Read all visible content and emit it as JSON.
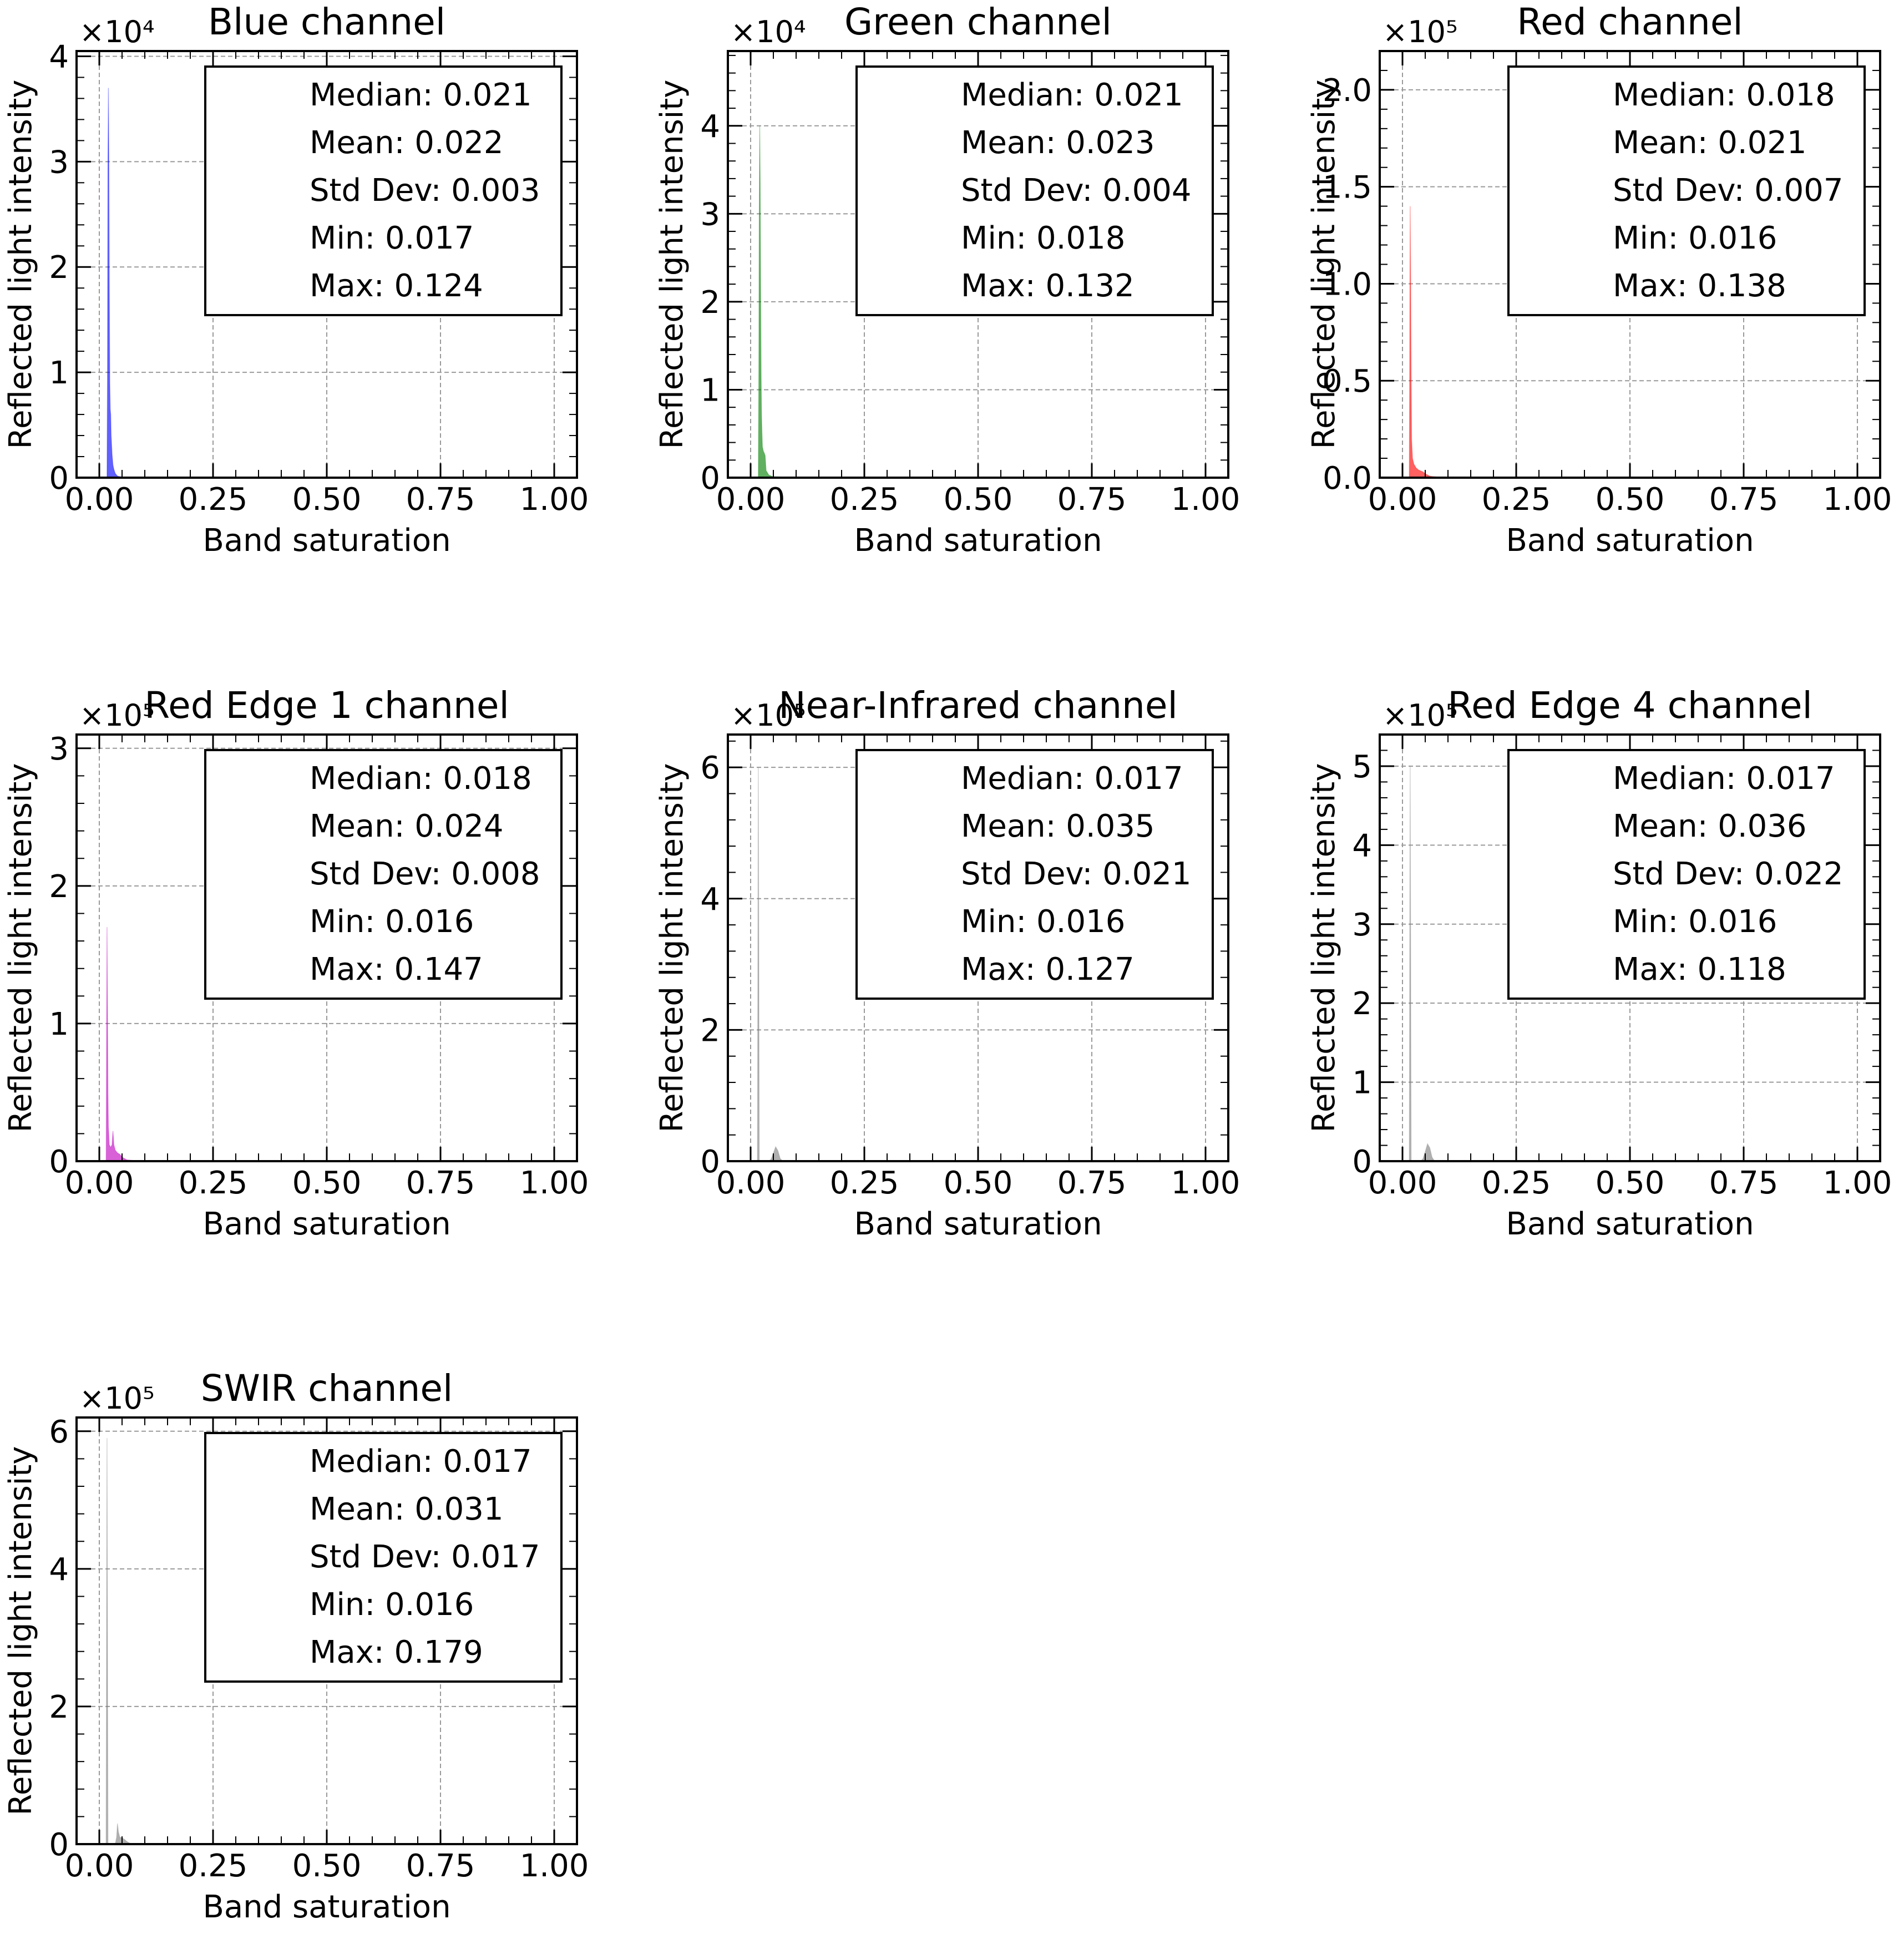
{
  "figure": {
    "layout": "3x3 grid, last row has one panel",
    "background": "#ffffff"
  },
  "chart_data": [
    {
      "type": "area",
      "title": "Blue channel",
      "xlabel": "Band saturation",
      "ylabel": "Reflected light intensity",
      "color": "#0000ff",
      "xlim": [
        -0.05,
        1.05
      ],
      "ylim": [
        0,
        40500
      ],
      "x_ticks": [
        0,
        0.25,
        0.5,
        0.75,
        1.0
      ],
      "x_tick_labels": [
        "0.00",
        "0.25",
        "0.50",
        "0.75",
        "1.00"
      ],
      "y_ticks": [
        0,
        10000,
        20000,
        30000,
        40000
      ],
      "y_tick_labels": [
        "0",
        "1",
        "2",
        "3",
        "4"
      ],
      "y_offset_label": "×10⁴",
      "grid": true,
      "stats": [
        "Median: 0.021",
        "Mean: 0.022",
        "Std Dev: 0.003",
        "Min: 0.017",
        "Max: 0.124"
      ],
      "series": [
        {
          "values": [
            [
              0.017,
              0
            ],
            [
              0.018,
              10000
            ],
            [
              0.019,
              30000
            ],
            [
              0.02,
              37000
            ],
            [
              0.021,
              30000
            ],
            [
              0.022,
              18000
            ],
            [
              0.023,
              9000
            ],
            [
              0.024,
              6500
            ],
            [
              0.025,
              6000
            ],
            [
              0.026,
              4000
            ],
            [
              0.028,
              2200
            ],
            [
              0.03,
              1200
            ],
            [
              0.032,
              800
            ],
            [
              0.035,
              400
            ],
            [
              0.04,
              150
            ],
            [
              0.05,
              60
            ],
            [
              0.124,
              0
            ]
          ]
        }
      ]
    },
    {
      "type": "area",
      "title": "Green channel",
      "xlabel": "Band saturation",
      "ylabel": "Reflected light intensity",
      "color": "#008000",
      "xlim": [
        -0.05,
        1.05
      ],
      "ylim": [
        0,
        48500
      ],
      "x_ticks": [
        0,
        0.25,
        0.5,
        0.75,
        1.0
      ],
      "x_tick_labels": [
        "0.00",
        "0.25",
        "0.50",
        "0.75",
        "1.00"
      ],
      "y_ticks": [
        0,
        10000,
        20000,
        30000,
        40000
      ],
      "y_tick_labels": [
        "0",
        "1",
        "2",
        "3",
        "4"
      ],
      "y_offset_label": "×10⁴",
      "grid": true,
      "stats": [
        "Median: 0.021",
        "Mean: 0.023",
        "Std Dev: 0.004",
        "Min: 0.018",
        "Max: 0.132"
      ],
      "series": [
        {
          "values": [
            [
              0.017,
              0
            ],
            [
              0.018,
              12000
            ],
            [
              0.019,
              30000
            ],
            [
              0.02,
              40000
            ],
            [
              0.021,
              34000
            ],
            [
              0.022,
              22000
            ],
            [
              0.023,
              12000
            ],
            [
              0.024,
              7000
            ],
            [
              0.025,
              5000
            ],
            [
              0.026,
              3500
            ],
            [
              0.028,
              3000
            ],
            [
              0.03,
              2800
            ],
            [
              0.032,
              2500
            ],
            [
              0.034,
              800
            ],
            [
              0.04,
              300
            ],
            [
              0.05,
              100
            ],
            [
              0.132,
              0
            ]
          ]
        }
      ]
    },
    {
      "type": "area",
      "title": "Red channel",
      "xlabel": "Band saturation",
      "ylabel": "Reflected light intensity",
      "color": "#ff0000",
      "xlim": [
        -0.05,
        1.05
      ],
      "ylim": [
        0,
        220000
      ],
      "x_ticks": [
        0,
        0.25,
        0.5,
        0.75,
        1.0
      ],
      "x_tick_labels": [
        "0.00",
        "0.25",
        "0.50",
        "0.75",
        "1.00"
      ],
      "y_ticks": [
        0,
        50000,
        100000,
        150000,
        200000
      ],
      "y_tick_labels": [
        "0.0",
        "0.5",
        "1.0",
        "1.5",
        "2.0"
      ],
      "y_offset_label": "×10⁵",
      "grid": true,
      "stats": [
        "Median: 0.018",
        "Mean: 0.021",
        "Std Dev: 0.007",
        "Min: 0.016",
        "Max: 0.138"
      ],
      "series": [
        {
          "values": [
            [
              0.015,
              0
            ],
            [
              0.016,
              60000
            ],
            [
              0.017,
              140000
            ],
            [
              0.018,
              100000
            ],
            [
              0.019,
              50000
            ],
            [
              0.02,
              20000
            ],
            [
              0.022,
              10000
            ],
            [
              0.025,
              7000
            ],
            [
              0.03,
              5000
            ],
            [
              0.035,
              4000
            ],
            [
              0.04,
              3500
            ],
            [
              0.045,
              3000
            ],
            [
              0.05,
              2000
            ],
            [
              0.06,
              800
            ],
            [
              0.08,
              200
            ],
            [
              0.138,
              0
            ]
          ]
        }
      ]
    },
    {
      "type": "area",
      "title": "Red Edge 1 channel",
      "xlabel": "Band saturation",
      "ylabel": "Reflected light intensity",
      "color": "#c000c0",
      "xlim": [
        -0.05,
        1.05
      ],
      "ylim": [
        0,
        310000
      ],
      "x_ticks": [
        0,
        0.25,
        0.5,
        0.75,
        1.0
      ],
      "x_tick_labels": [
        "0.00",
        "0.25",
        "0.50",
        "0.75",
        "1.00"
      ],
      "y_ticks": [
        0,
        100000,
        200000,
        300000
      ],
      "y_tick_labels": [
        "0",
        "1",
        "2",
        "3"
      ],
      "y_offset_label": "×10⁵",
      "grid": true,
      "stats": [
        "Median: 0.018",
        "Mean: 0.024",
        "Std Dev: 0.008",
        "Min: 0.016",
        "Max: 0.147"
      ],
      "series": [
        {
          "values": [
            [
              0.015,
              0
            ],
            [
              0.016,
              80000
            ],
            [
              0.017,
              170000
            ],
            [
              0.018,
              110000
            ],
            [
              0.019,
              50000
            ],
            [
              0.02,
              25000
            ],
            [
              0.022,
              12000
            ],
            [
              0.025,
              10000
            ],
            [
              0.028,
              12000
            ],
            [
              0.03,
              22000
            ],
            [
              0.032,
              12000
            ],
            [
              0.035,
              8000
            ],
            [
              0.04,
              6000
            ],
            [
              0.045,
              5000
            ],
            [
              0.05,
              3000
            ],
            [
              0.06,
              1000
            ],
            [
              0.08,
              300
            ],
            [
              0.147,
              0
            ]
          ]
        }
      ]
    },
    {
      "type": "area",
      "title": "Near-Infrared channel",
      "xlabel": "Band saturation",
      "ylabel": "Reflected light intensity",
      "color": "#808080",
      "xlim": [
        -0.05,
        1.05
      ],
      "ylim": [
        0,
        650000
      ],
      "x_ticks": [
        0,
        0.25,
        0.5,
        0.75,
        1.0
      ],
      "x_tick_labels": [
        "0.00",
        "0.25",
        "0.50",
        "0.75",
        "1.00"
      ],
      "y_ticks": [
        0,
        200000,
        400000,
        600000
      ],
      "y_tick_labels": [
        "0",
        "2",
        "4",
        "6"
      ],
      "y_offset_label": "×10⁵",
      "grid": true,
      "stats": [
        "Median: 0.017",
        "Mean: 0.035",
        "Std Dev: 0.021",
        "Min: 0.016",
        "Max: 0.127"
      ],
      "series": [
        {
          "values": [
            [
              0.015,
              0
            ],
            [
              0.016,
              300000
            ],
            [
              0.017,
              600000
            ],
            [
              0.018,
              300000
            ],
            [
              0.019,
              0
            ]
          ]
        },
        {
          "values": [
            [
              0.04,
              0
            ],
            [
              0.045,
              3000
            ],
            [
              0.05,
              12000
            ],
            [
              0.055,
              22000
            ],
            [
              0.06,
              16000
            ],
            [
              0.065,
              4000
            ],
            [
              0.07,
              500
            ],
            [
              0.127,
              0
            ]
          ]
        }
      ]
    },
    {
      "type": "area",
      "title": "Red Edge 4 channel",
      "xlabel": "Band saturation",
      "ylabel": "Reflected light intensity",
      "color": "#808080",
      "xlim": [
        -0.05,
        1.05
      ],
      "ylim": [
        0,
        540000
      ],
      "x_ticks": [
        0,
        0.25,
        0.5,
        0.75,
        1.0
      ],
      "x_tick_labels": [
        "0.00",
        "0.25",
        "0.50",
        "0.75",
        "1.00"
      ],
      "y_ticks": [
        0,
        100000,
        200000,
        300000,
        400000,
        500000
      ],
      "y_tick_labels": [
        "0",
        "1",
        "2",
        "3",
        "4",
        "5"
      ],
      "y_offset_label": "×10⁵",
      "grid": true,
      "stats": [
        "Median: 0.017",
        "Mean: 0.036",
        "Std Dev: 0.022",
        "Min: 0.016",
        "Max: 0.118"
      ],
      "series": [
        {
          "values": [
            [
              0.015,
              0
            ],
            [
              0.016,
              250000
            ],
            [
              0.017,
              500000
            ],
            [
              0.018,
              250000
            ],
            [
              0.019,
              0
            ]
          ]
        },
        {
          "values": [
            [
              0.04,
              0
            ],
            [
              0.045,
              3000
            ],
            [
              0.05,
              12000
            ],
            [
              0.055,
              22000
            ],
            [
              0.06,
              17000
            ],
            [
              0.065,
              5000
            ],
            [
              0.07,
              500
            ],
            [
              0.118,
              0
            ]
          ]
        }
      ]
    },
    {
      "type": "area",
      "title": "SWIR channel",
      "xlabel": "Band saturation",
      "ylabel": "Reflected light intensity",
      "color": "#808080",
      "xlim": [
        -0.05,
        1.05
      ],
      "ylim": [
        0,
        620000
      ],
      "x_ticks": [
        0,
        0.25,
        0.5,
        0.75,
        1.0
      ],
      "x_tick_labels": [
        "0.00",
        "0.25",
        "0.50",
        "0.75",
        "1.00"
      ],
      "y_ticks": [
        0,
        200000,
        400000,
        600000
      ],
      "y_tick_labels": [
        "0",
        "2",
        "4",
        "6"
      ],
      "y_offset_label": "×10⁵",
      "grid": true,
      "stats": [
        "Median: 0.017",
        "Mean: 0.031",
        "Std Dev: 0.017",
        "Min: 0.016",
        "Max: 0.179"
      ],
      "series": [
        {
          "values": [
            [
              0.015,
              0
            ],
            [
              0.016,
              300000
            ],
            [
              0.017,
              590000
            ],
            [
              0.018,
              300000
            ],
            [
              0.019,
              0
            ]
          ]
        },
        {
          "values": [
            [
              0.035,
              0
            ],
            [
              0.038,
              10000
            ],
            [
              0.04,
              30000
            ],
            [
              0.042,
              18000
            ],
            [
              0.045,
              10000
            ],
            [
              0.05,
              9000
            ],
            [
              0.055,
              7000
            ],
            [
              0.06,
              4000
            ],
            [
              0.065,
              2000
            ],
            [
              0.07,
              600
            ],
            [
              0.179,
              0
            ]
          ]
        }
      ]
    }
  ]
}
